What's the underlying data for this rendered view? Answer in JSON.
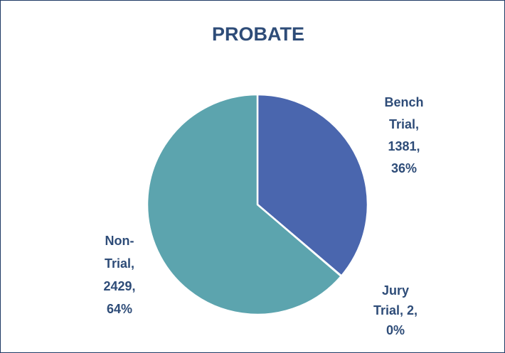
{
  "chart_data": {
    "type": "pie",
    "title": "PROBATE",
    "values": [
      1381,
      2,
      2429
    ],
    "value_labels": [
      [
        "Bench",
        "Trial,",
        "1381,",
        "36%"
      ],
      [
        "Jury",
        "Trial, 2,",
        "0%"
      ],
      [
        "Non-",
        "Trial,",
        "2429,",
        "64%"
      ]
    ],
    "colors": [
      "#4a66ae",
      "#a9b7d8",
      "#5ca4ae"
    ]
  }
}
